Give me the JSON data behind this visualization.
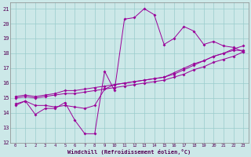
{
  "xlabel": "Windchill (Refroidissement éolien,°C)",
  "bg_color": "#cce8e8",
  "line_color": "#990099",
  "grid_color": "#99cccc",
  "xlim": [
    -0.5,
    23.5
  ],
  "ylim": [
    12,
    21.4
  ],
  "xticks": [
    0,
    1,
    2,
    3,
    4,
    5,
    6,
    7,
    8,
    9,
    10,
    11,
    12,
    13,
    14,
    15,
    16,
    17,
    18,
    19,
    20,
    21,
    22,
    23
  ],
  "yticks": [
    12,
    13,
    14,
    15,
    16,
    17,
    18,
    19,
    20,
    21
  ],
  "series1_x": [
    0,
    1,
    2,
    3,
    4,
    5,
    6,
    7,
    8,
    9,
    10,
    11,
    12,
    13,
    14,
    15,
    16,
    17,
    18,
    19,
    20,
    21,
    22,
    23
  ],
  "series1_y": [
    14.6,
    14.8,
    13.9,
    14.3,
    14.3,
    14.7,
    13.5,
    12.6,
    12.6,
    16.8,
    15.5,
    20.3,
    20.4,
    21.0,
    20.6,
    18.6,
    19.0,
    19.8,
    19.5,
    18.6,
    18.8,
    18.5,
    18.4,
    18.1
  ],
  "series2_x": [
    0,
    1,
    2,
    3,
    4,
    5,
    6,
    7,
    8,
    9,
    10,
    11,
    12,
    13,
    14,
    15,
    16,
    17,
    18,
    19,
    20,
    21,
    22,
    23
  ],
  "series2_y": [
    14.5,
    14.8,
    14.5,
    14.5,
    14.4,
    14.5,
    14.4,
    14.3,
    14.5,
    15.6,
    15.9,
    16.0,
    16.1,
    16.2,
    16.3,
    16.4,
    16.7,
    17.0,
    17.3,
    17.5,
    17.8,
    18.0,
    18.2,
    18.2
  ],
  "series3_x": [
    0,
    1,
    2,
    3,
    4,
    5,
    6,
    7,
    8,
    9,
    10,
    11,
    12,
    13,
    14,
    15,
    16,
    17,
    18,
    19,
    20,
    21,
    22,
    23
  ],
  "series3_y": [
    15.0,
    15.1,
    15.0,
    15.1,
    15.2,
    15.3,
    15.3,
    15.4,
    15.5,
    15.6,
    15.7,
    15.8,
    15.9,
    16.0,
    16.1,
    16.2,
    16.4,
    16.6,
    16.9,
    17.1,
    17.4,
    17.6,
    17.8,
    18.1
  ],
  "series4_x": [
    0,
    1,
    2,
    3,
    4,
    5,
    6,
    7,
    8,
    9,
    10,
    11,
    12,
    13,
    14,
    15,
    16,
    17,
    18,
    19,
    20,
    21,
    22,
    23
  ],
  "series4_y": [
    15.1,
    15.2,
    15.1,
    15.2,
    15.3,
    15.5,
    15.5,
    15.6,
    15.7,
    15.8,
    15.9,
    16.0,
    16.1,
    16.2,
    16.3,
    16.4,
    16.6,
    16.9,
    17.2,
    17.5,
    17.8,
    18.0,
    18.3,
    18.5
  ]
}
